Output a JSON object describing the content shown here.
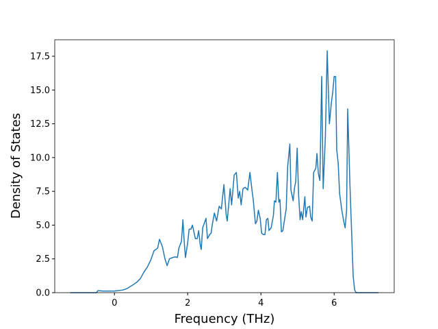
{
  "chart_data": {
    "type": "line",
    "xlabel": "Frequency (THz)",
    "ylabel": "Density of States",
    "xlim": [
      -1.63,
      7.64
    ],
    "ylim": [
      0,
      18.72
    ],
    "xticks": [
      0,
      2,
      4,
      6
    ],
    "yticks": [
      {
        "value": 0,
        "label": "0.0"
      },
      {
        "value": 2.5,
        "label": "2.5"
      },
      {
        "value": 5,
        "label": "5.0"
      },
      {
        "value": 7.5,
        "label": "7.5"
      },
      {
        "value": 10,
        "label": "10.0"
      },
      {
        "value": 12.5,
        "label": "12.5"
      },
      {
        "value": 15,
        "label": "15.0"
      },
      {
        "value": 17.5,
        "label": "17.5"
      }
    ],
    "x": [
      -1.21,
      -0.49,
      -0.45,
      -0.32,
      0,
      0.24,
      0.34,
      0.43,
      0.52,
      0.62,
      0.71,
      0.8,
      0.9,
      0.99,
      1.08,
      1.18,
      1.23,
      1.31,
      1.38,
      1.44,
      1.5,
      1.59,
      1.66,
      1.72,
      1.76,
      1.83,
      1.87,
      1.91,
      1.94,
      2.0,
      2.04,
      2.09,
      2.13,
      2.21,
      2.26,
      2.3,
      2.34,
      2.37,
      2.41,
      2.5,
      2.54,
      2.6,
      2.64,
      2.67,
      2.73,
      2.79,
      2.86,
      2.92,
      2.95,
      2.99,
      3.05,
      3.08,
      3.16,
      3.2,
      3.27,
      3.33,
      3.38,
      3.42,
      3.46,
      3.51,
      3.57,
      3.64,
      3.7,
      3.76,
      3.79,
      3.85,
      3.89,
      3.93,
      3.98,
      4.02,
      4.07,
      4.11,
      4.15,
      4.19,
      4.22,
      4.28,
      4.34,
      4.37,
      4.41,
      4.45,
      4.49,
      4.52,
      4.56,
      4.6,
      4.65,
      4.69,
      4.73,
      4.79,
      4.82,
      4.88,
      4.92,
      4.95,
      4.99,
      5.03,
      5.07,
      5.1,
      5.14,
      5.2,
      5.23,
      5.27,
      5.33,
      5.36,
      5.4,
      5.44,
      5.5,
      5.53,
      5.57,
      5.61,
      5.66,
      5.7,
      5.76,
      5.81,
      5.87,
      5.93,
      5.96,
      6.0,
      6.04,
      6.07,
      6.11,
      6.15,
      6.21,
      6.26,
      6.3,
      6.34,
      6.37,
      6.43,
      6.49,
      6.52,
      6.56,
      6.6,
      7.21
    ],
    "series": [
      {
        "color": "#1f77b4",
        "values": [
          0,
          0,
          0.15,
          0.12,
          0.12,
          0.2,
          0.3,
          0.45,
          0.6,
          0.8,
          1.05,
          1.5,
          1.9,
          2.4,
          3.1,
          3.3,
          3.95,
          3.4,
          2.5,
          2.0,
          2.5,
          2.6,
          2.65,
          2.6,
          3.3,
          3.8,
          5.4,
          3.6,
          2.6,
          3.7,
          4.7,
          4.7,
          5.0,
          4.0,
          4.0,
          4.6,
          3.6,
          3.2,
          4.8,
          5.5,
          4.0,
          4.3,
          4.4,
          5.0,
          5.9,
          5.3,
          6.4,
          6.2,
          7.0,
          8.0,
          5.8,
          5.3,
          7.7,
          6.5,
          8.7,
          8.9,
          7.0,
          7.5,
          6.5,
          7.7,
          7.8,
          7.6,
          8.9,
          7.5,
          6.9,
          5.1,
          5.3,
          6.1,
          5.5,
          4.4,
          4.3,
          4.3,
          5.4,
          5.5,
          4.6,
          4.8,
          5.7,
          6.8,
          6.7,
          8.9,
          6.7,
          6.9,
          4.5,
          4.6,
          5.5,
          6.2,
          9.3,
          11.0,
          7.6,
          6.8,
          7.8,
          8.2,
          10.7,
          7.2,
          5.4,
          6.0,
          5.4,
          7.1,
          5.6,
          6.3,
          6.4,
          5.6,
          5.3,
          8.9,
          9.2,
          10.3,
          8.8,
          8.3,
          16.0,
          7.7,
          11.5,
          17.9,
          12.5,
          14.2,
          14.8,
          16.0,
          16.0,
          10.6,
          9.6,
          7.3,
          6.1,
          5.3,
          4.8,
          6.1,
          13.6,
          8.1,
          3.5,
          1.2,
          0.2,
          0,
          0
        ]
      }
    ]
  }
}
